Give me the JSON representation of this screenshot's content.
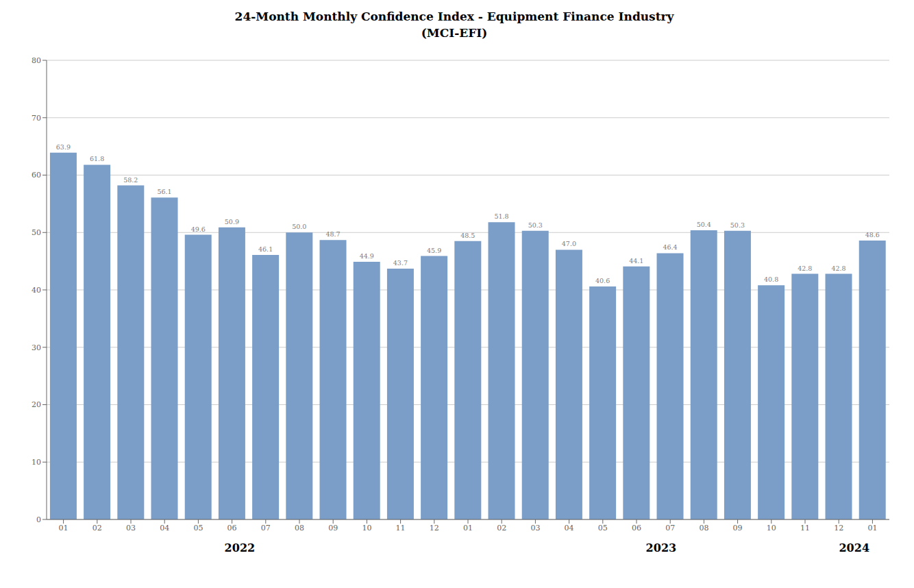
{
  "chart_data": {
    "type": "bar",
    "title": "24-Month Monthly Confidence Index - Equipment Finance Industry\n(MCI-EFI)",
    "categories": [
      "01",
      "02",
      "03",
      "04",
      "05",
      "06",
      "07",
      "08",
      "09",
      "10",
      "11",
      "12",
      "01",
      "02",
      "03",
      "04",
      "05",
      "06",
      "07",
      "08",
      "09",
      "10",
      "11",
      "12",
      "01"
    ],
    "values": [
      63.9,
      61.8,
      58.2,
      56.1,
      49.6,
      50.9,
      46.1,
      50.0,
      48.7,
      44.9,
      43.7,
      45.9,
      48.5,
      51.8,
      50.3,
      47.0,
      40.6,
      44.1,
      46.4,
      50.4,
      50.3,
      40.8,
      42.8,
      42.8,
      48.6
    ],
    "value_labels": [
      "63.9",
      "61.8",
      "58.2",
      "56.1",
      "49.6",
      "50.9",
      "46.1",
      "50.0",
      "48.7",
      "44.9",
      "43.7",
      "45.9",
      "48.5",
      "51.8",
      "50.3",
      "47.0",
      "40.6",
      "44.1",
      "46.4",
      "50.4",
      "50.3",
      "40.8",
      "42.8",
      "42.8",
      "48.6"
    ],
    "color": "#7b9ec8",
    "ylim": [
      0,
      80
    ],
    "yticks": [
      0,
      10,
      20,
      30,
      40,
      50,
      60,
      70,
      80
    ],
    "grid": true,
    "data_labels": true,
    "annotations": [
      {
        "text": "2022",
        "x": 5.5
      },
      {
        "text": "2023",
        "x": 17.5
      },
      {
        "text": "2024",
        "x": 23.0
      }
    ]
  }
}
